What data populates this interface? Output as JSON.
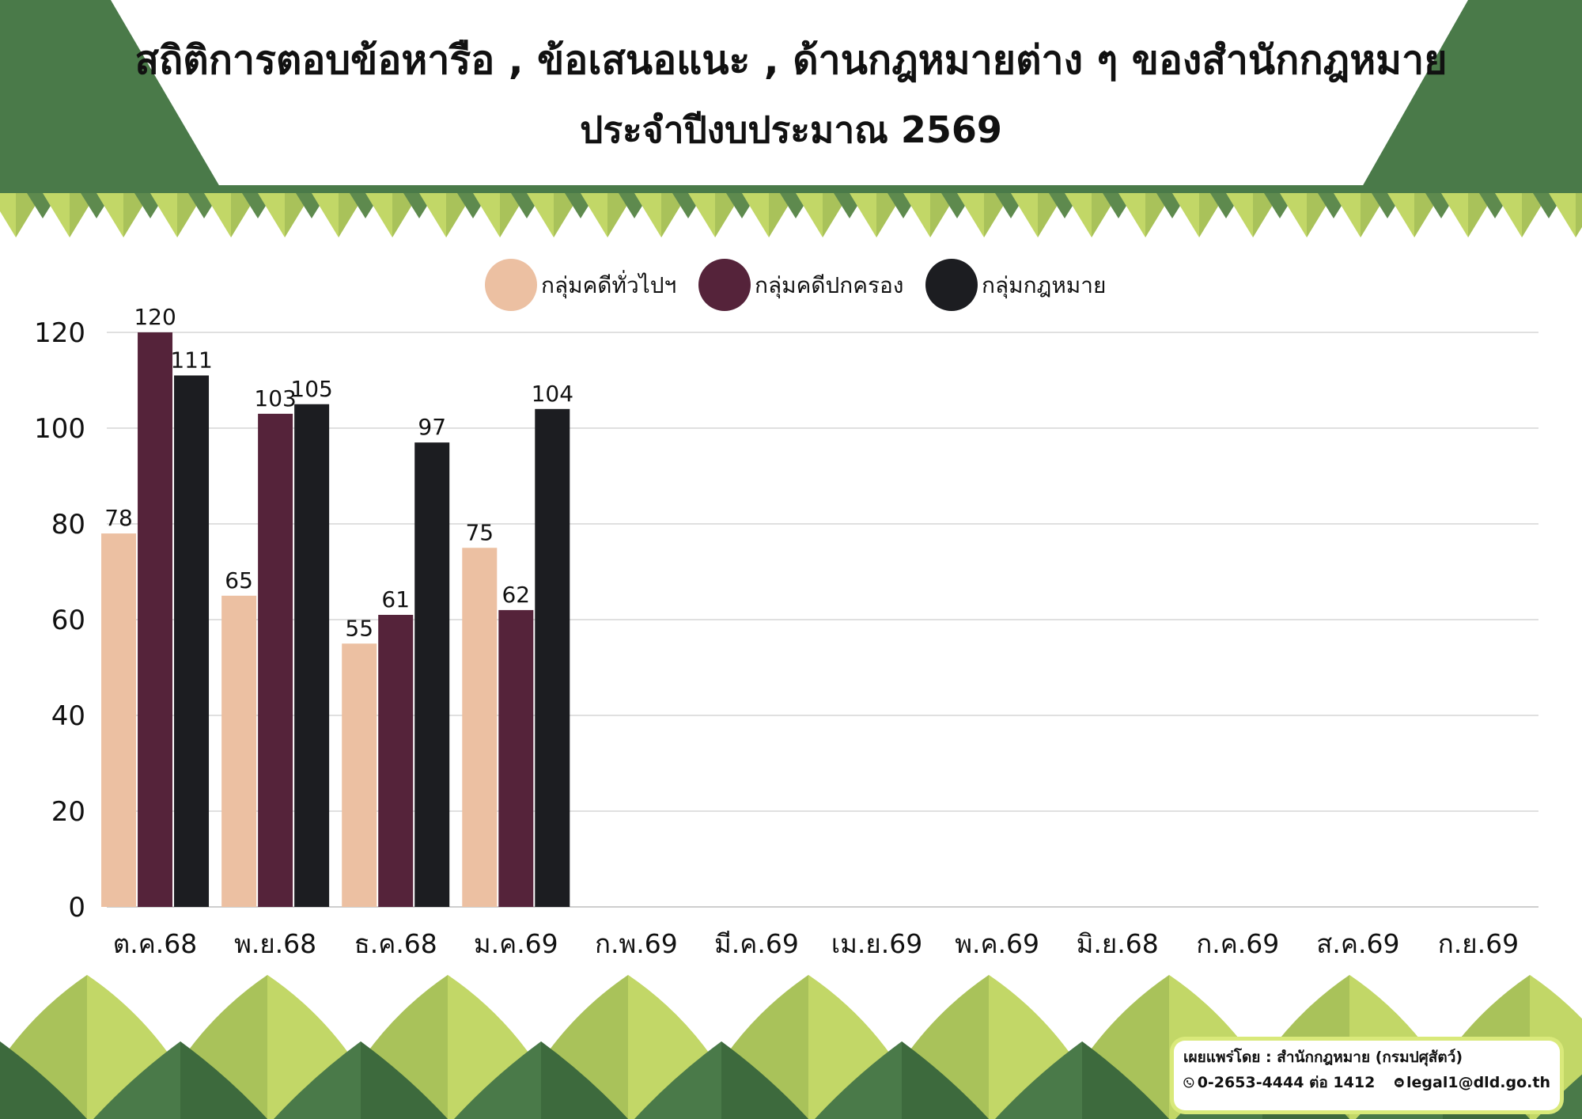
{
  "title": {
    "line1": "สถิติการตอบข้อหารือ , ข้อเสนอแนะ , ด้านกฎหมายต่าง ๆ  ของสำนักกฎหมาย",
    "line2": "ประจำปีงบประมาณ 2569"
  },
  "colors": {
    "general": "#ecc0a2",
    "admin": "#55233a",
    "law": "#1c1d21",
    "grid": "#d6d6d6",
    "leaf_dark": "#4a7a49",
    "leaf_light": "#c2d767"
  },
  "chart_data": {
    "type": "bar",
    "categories": [
      "ต.ค.68",
      "พ.ย.68",
      "ธ.ค.68",
      "ม.ค.69",
      "ก.พ.69",
      "มี.ค.69",
      "เม.ย.69",
      "พ.ค.69",
      "มิ.ย.68",
      "ก.ค.69",
      "ส.ค.69",
      "ก.ย.69"
    ],
    "series": [
      {
        "name": "กลุ่มคดีทั่วไปฯ",
        "values": [
          78,
          65,
          55,
          75,
          null,
          null,
          null,
          null,
          null,
          null,
          null,
          null
        ]
      },
      {
        "name": "กลุ่มคดีปกครอง",
        "values": [
          120,
          103,
          61,
          62,
          null,
          null,
          null,
          null,
          null,
          null,
          null,
          null
        ]
      },
      {
        "name": "กลุ่มกฎหมาย",
        "values": [
          111,
          105,
          97,
          104,
          null,
          null,
          null,
          null,
          null,
          null,
          null,
          null
        ]
      }
    ],
    "yticks": [
      0,
      20,
      40,
      60,
      80,
      100,
      120
    ],
    "ylim": [
      0,
      120
    ],
    "grid": true,
    "legend": "top-center"
  },
  "footer": {
    "publisher": "เผยแพร่โดย : สำนักกฎหมาย (กรมปศุสัตว์)",
    "phone": "0-2653-4444 ต่อ 1412",
    "email": "legal1@dld.go.th",
    "phone_icon": "phone-icon",
    "email_icon": "mail-icon"
  }
}
